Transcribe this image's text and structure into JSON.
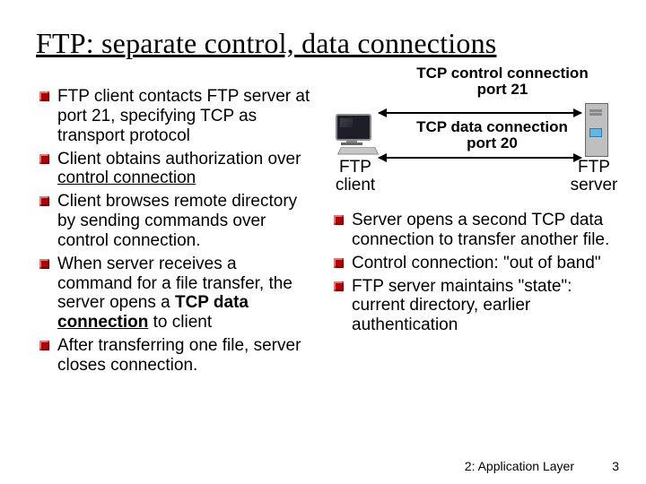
{
  "title": "FTP: separate control, data connections",
  "left_bullets": [
    {
      "pre": "FTP client contacts FTP server at port 21, specifying TCP as transport protocol"
    },
    {
      "pre": "Client obtains authorization over ",
      "u": "control connection"
    },
    {
      "pre": "Client browses remote directory by sending commands over control connection."
    },
    {
      "pre": "When server receives a command for a file transfer, the server opens a ",
      "bold": "TCP data ",
      "u": "connection",
      "post": " to client"
    },
    {
      "pre": "After transferring one file, server closes connection."
    }
  ],
  "right_bullets": [
    {
      "pre": "Server opens a second TCP data connection to transfer another file."
    },
    {
      "pre": "Control connection: \"out of band\""
    },
    {
      "pre": "FTP server maintains \"state\": current directory, earlier authentication"
    }
  ],
  "diagram": {
    "ctrl_label": "TCP control connection\nport 21",
    "data_label": "TCP data connection\nport 20",
    "client_label": "FTP\nclient",
    "server_label": "FTP\nserver"
  },
  "footer": {
    "label": "2: Application Layer",
    "page": "3"
  },
  "colors": {
    "bullet": "#b30000"
  }
}
